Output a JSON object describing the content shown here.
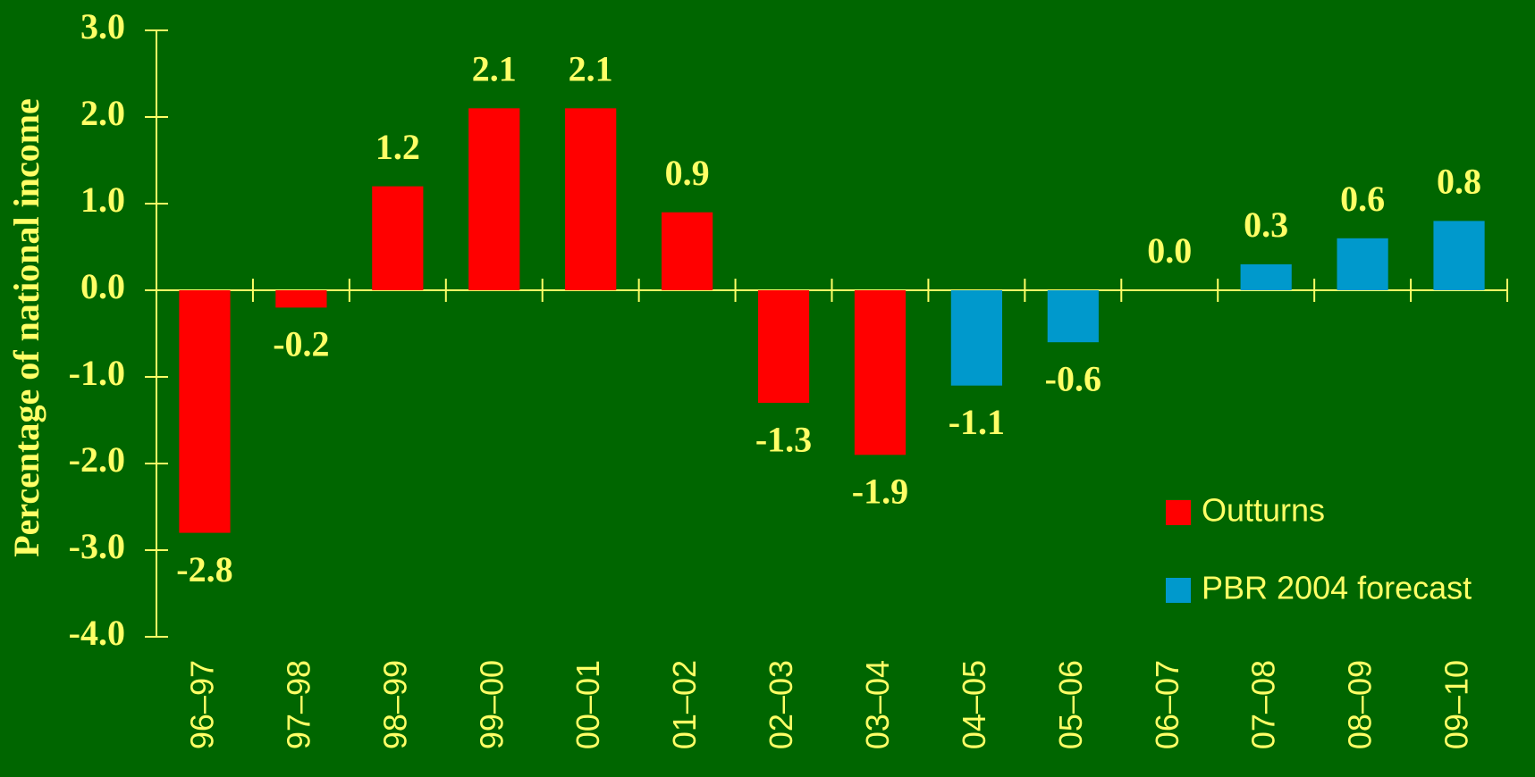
{
  "chart_data": {
    "type": "bar",
    "y_label": "Percentage of national income",
    "categories": [
      "96–97",
      "97–98",
      "98–99",
      "99–00",
      "00–01",
      "01–02",
      "02–03",
      "03–04",
      "04–05",
      "05–06",
      "06–07",
      "07–08",
      "08–09",
      "09–10"
    ],
    "series": [
      {
        "name": "Outturns",
        "color": "#ff0000",
        "values": [
          -2.8,
          -0.2,
          1.2,
          2.1,
          2.1,
          0.9,
          -1.3,
          -1.9,
          null,
          null,
          null,
          null,
          null,
          null
        ],
        "value_labels": [
          "-2.8",
          "-0.2",
          "1.2",
          "2.1",
          "2.1",
          "0.9",
          "-1.3",
          "-1.9",
          null,
          null,
          null,
          null,
          null,
          null
        ]
      },
      {
        "name": "PBR 2004 forecast",
        "color": "#0099cc",
        "values": [
          null,
          null,
          null,
          null,
          null,
          null,
          null,
          null,
          -1.1,
          -0.6,
          0,
          0.3,
          0.6,
          0.8
        ],
        "value_labels": [
          null,
          null,
          null,
          null,
          null,
          null,
          null,
          null,
          "-1.1",
          "-0.6",
          "0.0",
          "0.3",
          "0.6",
          "0.8"
        ]
      }
    ],
    "ylim": [
      -4,
      3
    ],
    "yticks": [
      {
        "value": -4,
        "label": "-4.0"
      },
      {
        "value": -3,
        "label": "-3.0"
      },
      {
        "value": -2,
        "label": "-2.0"
      },
      {
        "value": -1,
        "label": "-1.0"
      },
      {
        "value": 0,
        "label": "0.0"
      },
      {
        "value": 1,
        "label": "1.0"
      },
      {
        "value": 2,
        "label": "2.0"
      },
      {
        "value": 3,
        "label": "3.0"
      }
    ],
    "legend": "lower right",
    "background": "#006600",
    "text_color": "#ffff66"
  }
}
